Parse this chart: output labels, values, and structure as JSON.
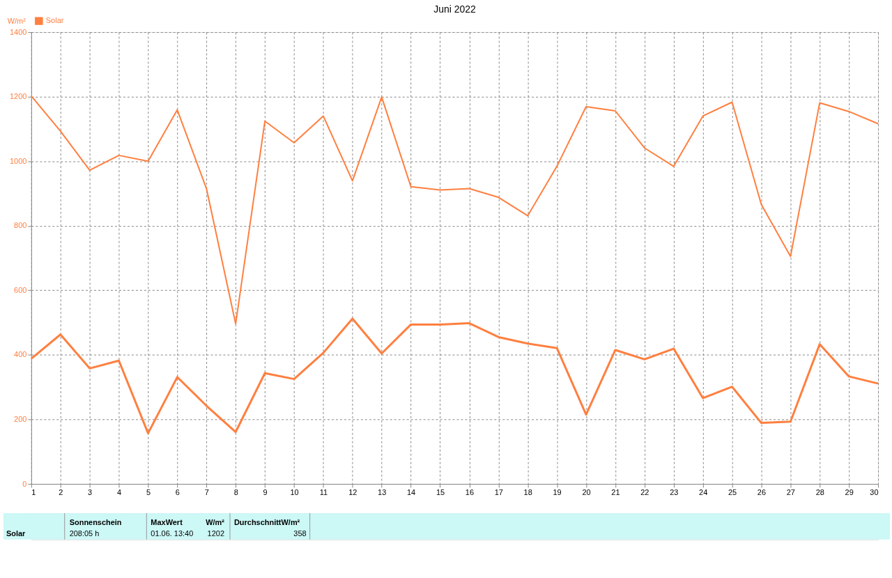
{
  "chart_data": {
    "type": "line",
    "title": "Juni 2022",
    "ylabel": "W/m²",
    "x": [
      1,
      2,
      3,
      4,
      5,
      6,
      7,
      8,
      9,
      10,
      11,
      12,
      13,
      14,
      15,
      16,
      17,
      18,
      19,
      20,
      21,
      22,
      23,
      24,
      25,
      26,
      27,
      28,
      29,
      30
    ],
    "series": [
      {
        "name": "Solar",
        "color": "#ff7f3f",
        "values": [
          1202,
          1093,
          972,
          1018,
          1000,
          1159,
          915,
          496,
          1124,
          1057,
          1140,
          939,
          1199,
          921,
          911,
          915,
          888,
          831,
          984,
          1169,
          1156,
          1041,
          984,
          1140,
          1183,
          866,
          705,
          1181,
          1154,
          1116
        ]
      },
      {
        "color": "#ff7f3f",
        "values": [
          388,
          463,
          358,
          382,
          157,
          331,
          242,
          161,
          343,
          325,
          406,
          512,
          404,
          494,
          494,
          498,
          455,
          435,
          421,
          215,
          415,
          386,
          419,
          266,
          301,
          189,
          193,
          433,
          333,
          311
        ]
      }
    ],
    "xlim": [
      1,
      30
    ],
    "xticks": [
      1,
      2,
      3,
      4,
      5,
      6,
      7,
      8,
      9,
      10,
      11,
      12,
      13,
      14,
      15,
      16,
      17,
      18,
      19,
      20,
      21,
      22,
      23,
      24,
      25,
      26,
      27,
      28,
      29,
      30
    ],
    "ylim": [
      0,
      1400
    ],
    "yticks": [
      0,
      200,
      400,
      600,
      800,
      1000,
      1200,
      1400
    ],
    "grid": true,
    "legend": "top left",
    "marker": "none",
    "line_style": "solid",
    "annotations": [
      "Solar",
      "Sonnenschein",
      "208:05 h",
      "MaxWert",
      "W/m²",
      "01.06. 13:40",
      "1202",
      "DurchschnittW/m²",
      "358"
    ]
  }
}
